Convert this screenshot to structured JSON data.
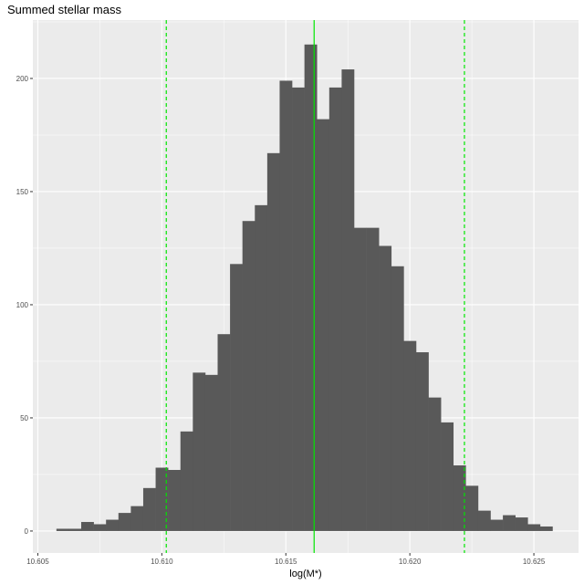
{
  "chart_data": {
    "type": "bar",
    "title": "Summed stellar mass",
    "xlabel": "log(M*)",
    "ylabel": "",
    "bin_centers_start": 10.606,
    "bin_width": 0.0005,
    "values": [
      1,
      1,
      4,
      3,
      5,
      8,
      11,
      19,
      28,
      27,
      44,
      70,
      69,
      87,
      118,
      137,
      144,
      167,
      199,
      196,
      215,
      182,
      196,
      204,
      134,
      134,
      126,
      117,
      84,
      79,
      59,
      48,
      29,
      20,
      9,
      5,
      7,
      6,
      3,
      2
    ],
    "xlim": [
      10.6048,
      10.6268
    ],
    "ylim": [
      -9.7,
      225.8
    ],
    "xticks": [
      10.605,
      10.61,
      10.615,
      10.62,
      10.625
    ],
    "xtick_labels": [
      "10.605",
      "10.610",
      "10.615",
      "10.620",
      "10.625"
    ],
    "yticks": [
      0,
      50,
      100,
      150,
      200
    ],
    "ytick_labels": [
      "0",
      "50",
      "100",
      "150",
      "200"
    ],
    "grid": true,
    "vlines": [
      {
        "x": 10.61614,
        "style": "solid"
      },
      {
        "x": 10.61018,
        "style": "dashed"
      },
      {
        "x": 10.6222,
        "style": "dashed"
      }
    ],
    "colors": {
      "bars": "#595959",
      "panel": "#EBEBEB",
      "grid": "#FFFFFF",
      "vlines": "#00E600"
    }
  }
}
